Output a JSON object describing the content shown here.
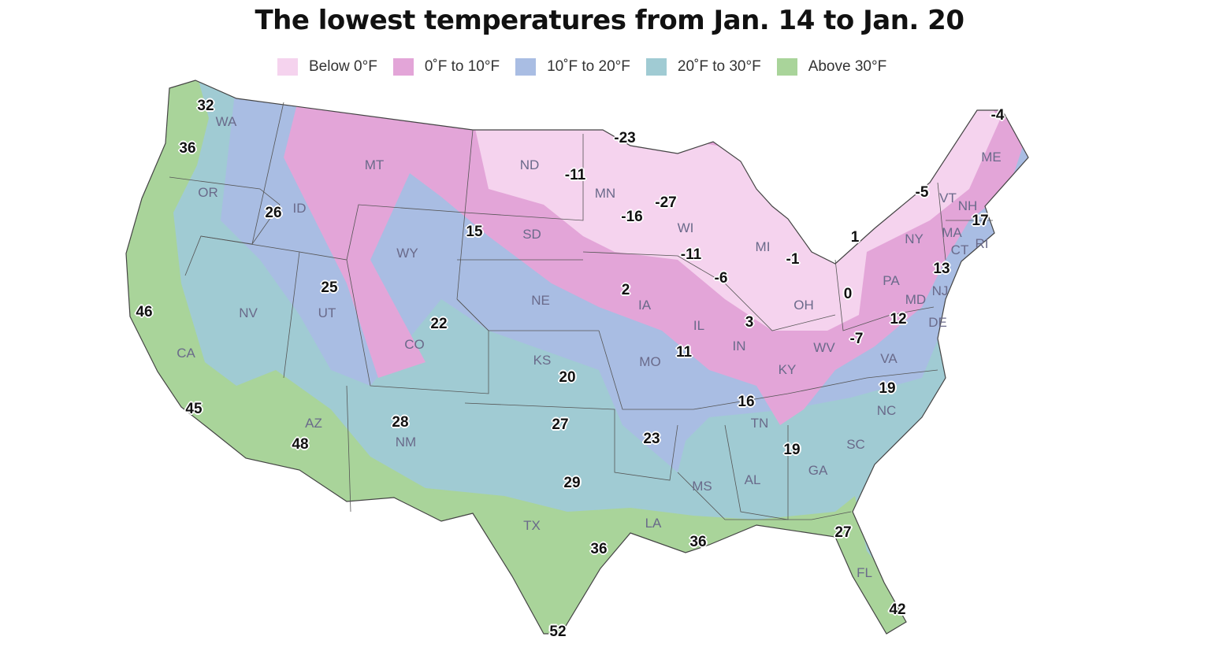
{
  "title": "The lowest temperatures from Jan. 14 to Jan. 20",
  "legend": [
    {
      "label": "Below 0°F",
      "color": "#f5d3ee"
    },
    {
      "label": "0˚F to 10°F",
      "color": "#e3a5d8"
    },
    {
      "label": "10˚F to 20°F",
      "color": "#a9bde3"
    },
    {
      "label": "20˚F to 30°F",
      "color": "#a0cbd3"
    },
    {
      "label": "Above 30°F",
      "color": "#a9d49a"
    }
  ],
  "states": [
    "WA",
    "OR",
    "ID",
    "MT",
    "WY",
    "NV",
    "UT",
    "CA",
    "AZ",
    "CO",
    "NM",
    "ND",
    "SD",
    "NE",
    "KS",
    "TX",
    "MN",
    "IA",
    "MO",
    "LA",
    "WI",
    "IL",
    "MS",
    "MI",
    "IN",
    "OH",
    "KY",
    "TN",
    "AL",
    "GA",
    "FL",
    "SC",
    "NC",
    "VA",
    "WV",
    "PA",
    "NY",
    "VT",
    "NH",
    "ME",
    "MA",
    "CT",
    "RI",
    "NJ",
    "MD",
    "DE"
  ],
  "temperatures": [
    "32",
    "36",
    "26",
    "46",
    "45",
    "48",
    "25",
    "22",
    "15",
    "28",
    "27",
    "29",
    "36",
    "52",
    "20",
    "2",
    "23",
    "11",
    "-23",
    "-11",
    "-16",
    "-27",
    "-11",
    "-6",
    "3",
    "16",
    "19",
    "36",
    "27",
    "42",
    "19",
    "-7",
    "12",
    "0",
    "1",
    "13",
    "17",
    "-5",
    "-4",
    "-1"
  ]
}
